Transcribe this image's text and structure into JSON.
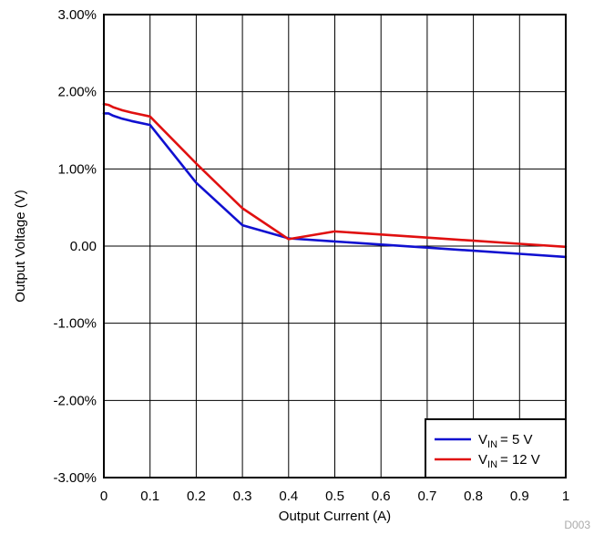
{
  "chart_data": {
    "type": "line",
    "xlabel": "Output Current (A)",
    "ylabel": "Output Voltage (V)",
    "xlim": [
      0,
      1
    ],
    "ylim": [
      -3,
      3
    ],
    "x_ticks": [
      0,
      0.1,
      0.2,
      0.3,
      0.4,
      0.5,
      0.6,
      0.7,
      0.8,
      0.9,
      1
    ],
    "x_tick_labels": [
      "0",
      "0.1",
      "0.2",
      "0.3",
      "0.4",
      "0.5",
      "0.6",
      "0.7",
      "0.8",
      "0.9",
      "1"
    ],
    "y_ticks": [
      3,
      2,
      1,
      0,
      -1,
      -2,
      -3
    ],
    "y_tick_labels": [
      "3.00%",
      "2.00%",
      "1.00%",
      "0.00",
      "-1.00%",
      "-2.00%",
      "-3.00%"
    ],
    "grid": true,
    "legend_position": "bottom-right",
    "series": [
      {
        "legend_main": "V",
        "legend_sub": "IN",
        "legend_value": "= 5 V",
        "color": "#1010d0",
        "x": [
          0,
          0.01,
          0.02,
          0.04,
          0.06,
          0.1,
          0.2,
          0.3,
          0.4,
          0.5,
          0.6,
          0.7,
          0.8,
          0.9,
          1.0
        ],
        "y": [
          1.72,
          1.72,
          1.69,
          1.65,
          1.62,
          1.57,
          0.82,
          0.27,
          0.1,
          0.06,
          0.02,
          -0.02,
          -0.06,
          -0.1,
          -0.14
        ]
      },
      {
        "legend_main": "V",
        "legend_sub": "IN",
        "legend_value": "= 12 V",
        "color": "#e01010",
        "x": [
          0,
          0.01,
          0.02,
          0.04,
          0.06,
          0.1,
          0.2,
          0.3,
          0.4,
          0.5,
          0.6,
          0.7,
          0.8,
          0.9,
          1.0
        ],
        "y": [
          1.84,
          1.83,
          1.8,
          1.76,
          1.73,
          1.68,
          1.07,
          0.49,
          0.09,
          0.19,
          0.15,
          0.11,
          0.07,
          0.03,
          -0.01
        ]
      }
    ],
    "watermark": "D003"
  }
}
